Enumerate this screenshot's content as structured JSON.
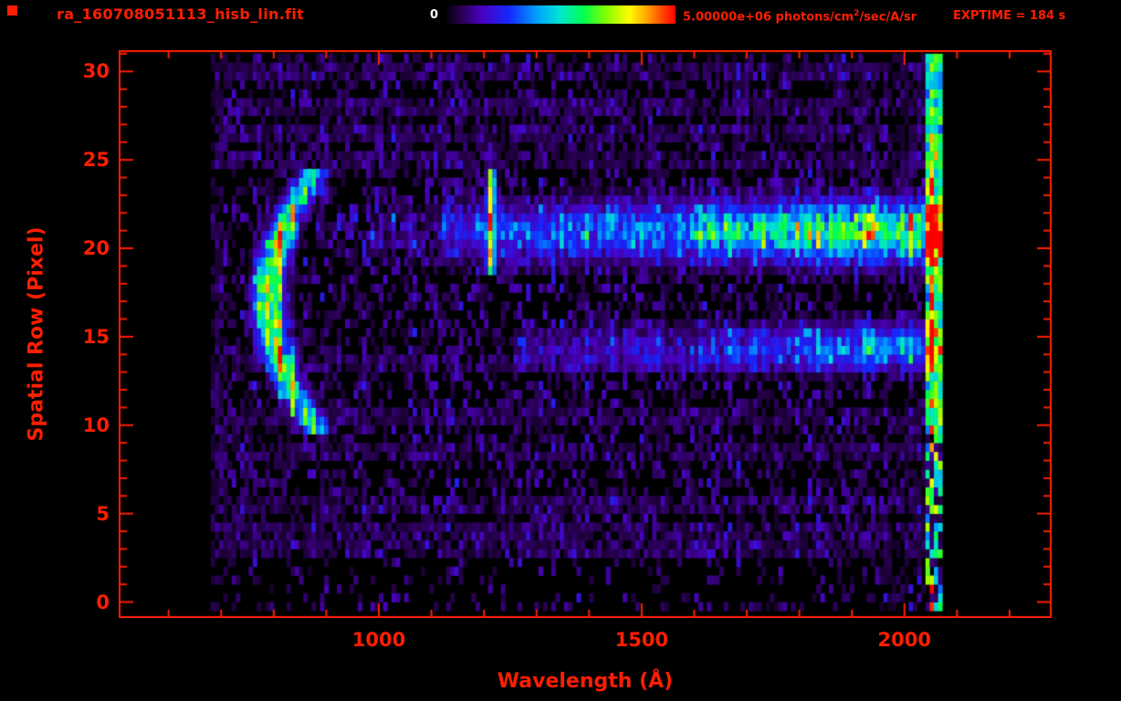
{
  "header": {
    "title": "ra_160708051113_hisb_lin.fit",
    "colorbar_min": "0",
    "colorbar_max_prefix": "5.00000e+06 photons/cm",
    "colorbar_max_sup": "2",
    "colorbar_max_suffix": "/sec/A/sr",
    "exptime": "EXPTIME = 184 s"
  },
  "colors": {
    "accent": "#ff1e00",
    "background": "#000000",
    "colorbar_min_text": "#ffffff"
  },
  "chart_data": {
    "type": "heatmap",
    "title": "ra_160708051113_hisb_lin.fit",
    "xlabel": "Wavelength (Å)",
    "ylabel": "Spatial Row (Pixel)",
    "x_ticks": [
      1000,
      1500,
      2000
    ],
    "x_minor_step": 100,
    "x_major_step": 500,
    "y_ticks": [
      0,
      5,
      10,
      15,
      20,
      25,
      30
    ],
    "y_minor_step": 1,
    "y_major_step": 5,
    "x_range": [
      505,
      2280
    ],
    "y_range": [
      -0.9,
      31.2
    ],
    "data_wavelength_range": [
      680,
      2072
    ],
    "colorbar": {
      "min": 0,
      "max": 5000000,
      "units": "photons/cm^2/sec/A/sr"
    },
    "exposure_time_s": 184,
    "seed": 160708,
    "cell": {
      "dl": 8,
      "drow": 0.5
    },
    "colormap": [
      [
        0.0,
        [
          0,
          0,
          0
        ]
      ],
      [
        0.07,
        [
          40,
          0,
          80
        ]
      ],
      [
        0.16,
        [
          75,
          0,
          190
        ]
      ],
      [
        0.28,
        [
          20,
          40,
          255
        ]
      ],
      [
        0.4,
        [
          0,
          160,
          255
        ]
      ],
      [
        0.5,
        [
          0,
          230,
          210
        ]
      ],
      [
        0.6,
        [
          0,
          255,
          80
        ]
      ],
      [
        0.7,
        [
          130,
          255,
          0
        ]
      ],
      [
        0.8,
        [
          255,
          250,
          0
        ]
      ],
      [
        0.88,
        [
          255,
          160,
          0
        ]
      ],
      [
        0.95,
        [
          255,
          60,
          0
        ]
      ],
      [
        1.0,
        [
          255,
          0,
          0
        ]
      ]
    ],
    "noise": {
      "base_p": 0.42,
      "amp": 0.17,
      "stripe_p": 0.82,
      "stripe_rows": [
        2.75,
        3.75,
        5.25,
        8.25,
        10.25,
        13.25,
        24.75,
        26.25,
        27.75,
        29.75
      ],
      "left_edge_wl": 700,
      "right_dense_start": 1980
    },
    "features": {
      "crescent": {
        "apex_wl": 788,
        "bow": 78,
        "row_center": 16.8,
        "row_halfspan": 6.9,
        "wl_width": 26,
        "peak": 1.0
      },
      "emission_line": {
        "wl": 1210,
        "sigma": 9,
        "row_min": 18.3,
        "row_max": 24.2,
        "amp": 0.62
      },
      "main_trace": {
        "row_center": 20.7,
        "row_sigma": 1.6,
        "wl_start": 1120,
        "base": 0.22,
        "gain": 0.62,
        "faint_start": 880,
        "faint_amp": 0.15
      },
      "secondary_band": {
        "row_center": 14.2,
        "row_sigma": 1.25,
        "wl_start": 1250,
        "base": 0.1,
        "gain": 0.38
      },
      "right_edge": {
        "wl_min": 2040,
        "wl_max": 2072,
        "amp_lo": 0.3,
        "amp_hi": 0.8,
        "sparse_below_row": 9
      }
    }
  }
}
